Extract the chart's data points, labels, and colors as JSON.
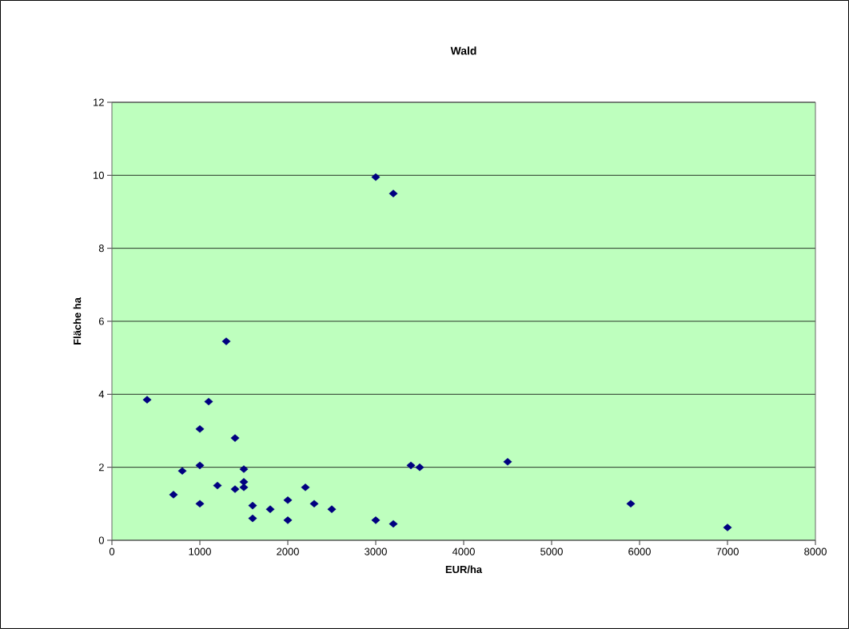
{
  "chart_data": {
    "type": "scatter",
    "title": "Wald",
    "xlabel": "EUR/ha",
    "ylabel": "Fläche ha",
    "x": [
      400,
      1300,
      1100,
      1000,
      1400,
      1000,
      800,
      1500,
      1500,
      1200,
      1400,
      1500,
      700,
      2200,
      1000,
      1600,
      2000,
      2300,
      1800,
      2500,
      1600,
      2000,
      3000,
      3200,
      3400,
      3500,
      4500,
      3000,
      3200,
      5900,
      7000
    ],
    "values": [
      3.85,
      5.45,
      3.8,
      3.05,
      2.8,
      2.05,
      1.9,
      1.95,
      1.6,
      1.5,
      1.4,
      1.45,
      1.25,
      1.45,
      1.0,
      0.95,
      1.1,
      1.0,
      0.85,
      0.85,
      0.6,
      0.55,
      9.95,
      9.5,
      2.05,
      2.0,
      2.15,
      0.55,
      0.45,
      1.0,
      0.35
    ],
    "color": "#000080",
    "marker": "diamond",
    "xlim": [
      0,
      8000
    ],
    "ylim": [
      0,
      12
    ],
    "xticks": [
      0,
      1000,
      2000,
      3000,
      4000,
      5000,
      6000,
      7000,
      8000
    ],
    "yticks": [
      0,
      2,
      4,
      6,
      8,
      10,
      12
    ],
    "grid": "y"
  }
}
